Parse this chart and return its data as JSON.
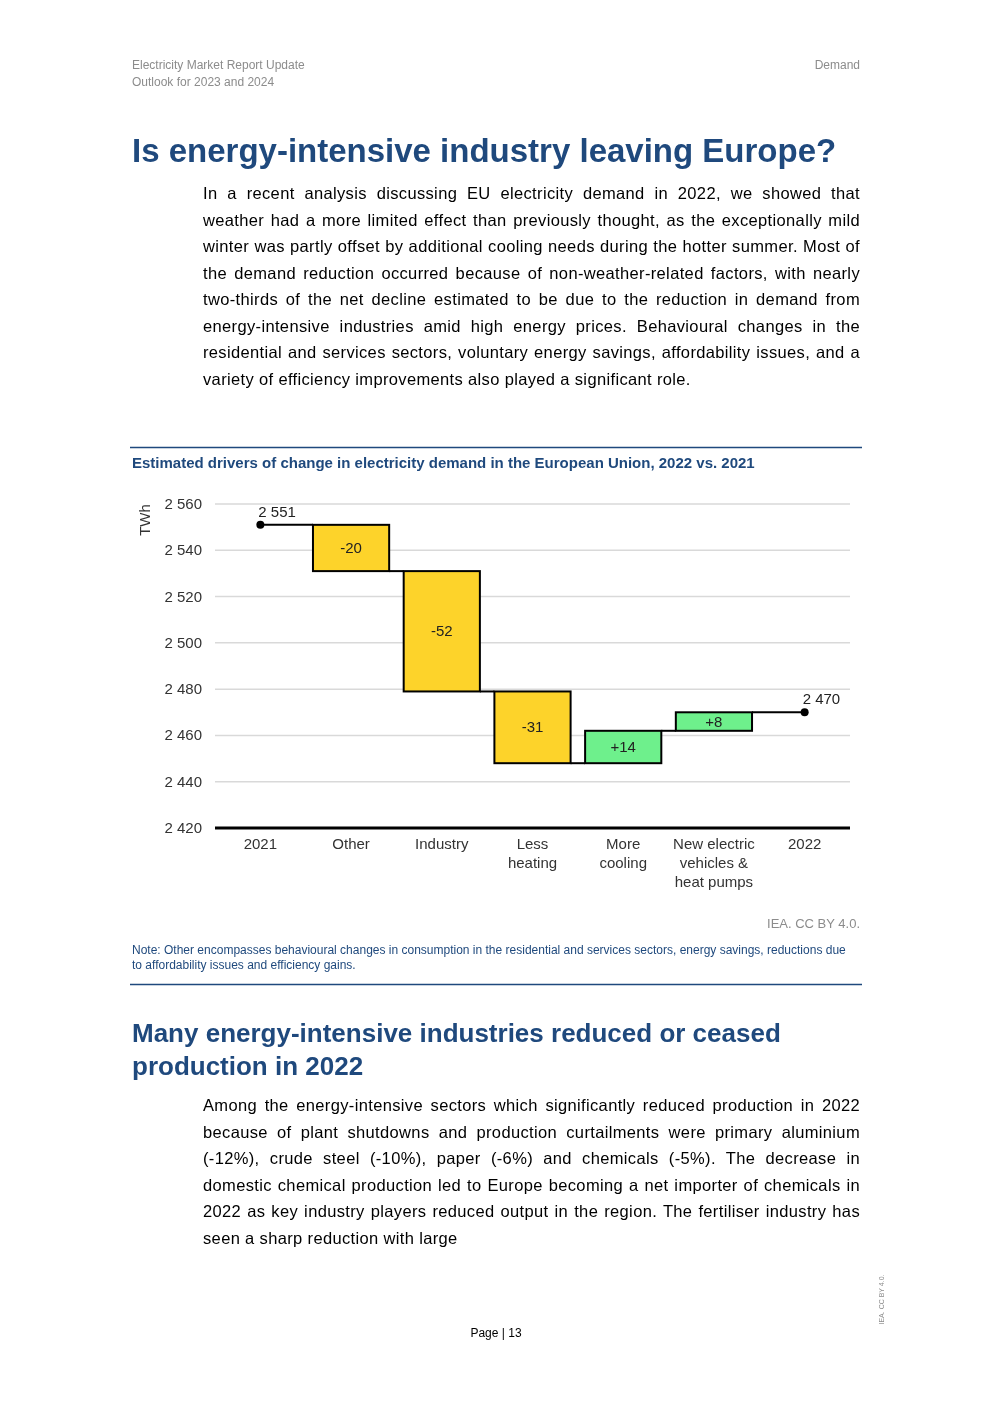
{
  "chart_data": {
    "type": "bar",
    "title": "Estimated drivers of change in electricity demand in the European Union, 2022 vs. 2021",
    "ylabel": "TWh",
    "categories": [
      "2021",
      "Other",
      "Industry",
      "Less heating",
      "More cooling",
      "New electric vehicles & heat pumps",
      "2022"
    ],
    "series": [
      {
        "values": [
          null,
          -20,
          -52,
          -31,
          14,
          8,
          null
        ],
        "base": [
          null,
          2551,
          2531,
          2479,
          2448,
          2462,
          null
        ],
        "colors": [
          null,
          "#fdd32a",
          "#fdd32a",
          "#fdd32a",
          "#6ef08c",
          "#6ef08c",
          null
        ],
        "value_labels": [
          null,
          "-20",
          "-52",
          "-31",
          "+14",
          "+8",
          null
        ]
      },
      {
        "type": "scatter",
        "values": [
          2551,
          null,
          null,
          null,
          null,
          null,
          2470
        ],
        "color": "#000000",
        "value_labels": [
          "2 551",
          null,
          null,
          null,
          null,
          null,
          "2 470"
        ]
      }
    ],
    "ylim": [
      2420,
      2560
    ],
    "yticks": [
      {
        "value": 2420,
        "label": "2 420"
      },
      {
        "value": 2440,
        "label": "2 440"
      },
      {
        "value": 2460,
        "label": "2 460"
      },
      {
        "value": 2480,
        "label": "2 480"
      },
      {
        "value": 2500,
        "label": "2 500"
      },
      {
        "value": 2520,
        "label": "2 520"
      },
      {
        "value": 2540,
        "label": "2 540"
      },
      {
        "value": 2560,
        "label": "2 560"
      }
    ],
    "grid": "y",
    "annotations": [
      "Electricity Market Report Update",
      "Outlook for 2023 and 2024",
      "Demand",
      "Is energy-intensive industry leaving Europe?",
      "In a recent analysis discussing EU electricity demand in 2022, we showed that weather had a more limited effect than previously thought, as the exceptionally mild winter was partly offset by additional cooling needs during the hotter summer. Most of the demand reduction occurred because of non-weather-related factors, with nearly two-thirds of the net decline estimated to be due to the reduction in demand from energy-intensive industries amid high energy prices. Behavioural changes in the residential and services sectors, voluntary energy savings, affordability issues, and a variety of efficiency improvements also played a significant role.",
      "IEA. CC BY 4.0.",
      "Note: Other encompasses behavioural changes in consumption in the residential and services sectors, energy savings, reductions due to affordability issues and efficiency gains.",
      "Many energy-intensive industries reduced or ceased production in 2022",
      "Among the energy-intensive sectors which significantly reduced production in 2022 because of plant shutdowns and production curtailments were primary aluminium (-12%), crude steel (-10%), paper (-6%) and chemicals (-5%). The decrease in domestic chemical production led to Europe becoming a net importer of chemicals in 2022 as key industry players reduced output in the region. The fertiliser industry has seen a sharp reduction with large",
      "Page | 13",
      "IEA. CC BY 4.0."
    ]
  }
}
